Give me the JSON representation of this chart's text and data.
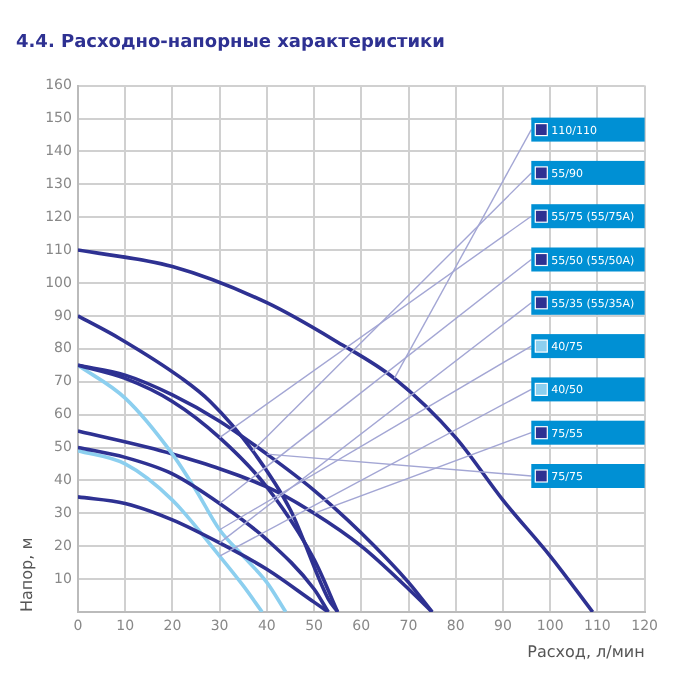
{
  "chart_data": {
    "type": "line",
    "title": "4.4. Расходно-напорные характеристики",
    "xlabel": "Расход, л/мин",
    "ylabel": "Напор, м",
    "xlim": [
      0,
      120
    ],
    "xticks": [
      0,
      10,
      20,
      30,
      40,
      50,
      60,
      70,
      80,
      90,
      100,
      110,
      120
    ],
    "ylim": [
      0,
      160
    ],
    "yticks": [
      {
        "value": 0,
        "label": null
      },
      10,
      20,
      30,
      40,
      50,
      60,
      70,
      80,
      90,
      100,
      110,
      120,
      130,
      140,
      150,
      160
    ],
    "grid": true,
    "legend": "right",
    "marker": "none",
    "line_style": "solid",
    "series": [
      {
        "name": "110/110",
        "color": "#2e3192",
        "x": [
          0,
          20,
          40,
          55,
          67,
          80,
          90,
          100,
          109
        ],
        "values": [
          110,
          105,
          94,
          82,
          71,
          53,
          34,
          17,
          0
        ]
      },
      {
        "name": "55/90",
        "color": "#2e3192",
        "x": [
          0,
          9,
          22,
          28,
          37,
          45,
          53,
          55
        ],
        "values": [
          90,
          83,
          71,
          64,
          49,
          31,
          4,
          0
        ]
      },
      {
        "name": "55/75 (55/75А)",
        "color": "#2e3192",
        "x": [
          0,
          10,
          20,
          30,
          40,
          50,
          55
        ],
        "values": [
          75,
          71,
          64,
          53,
          38,
          16,
          0
        ]
      },
      {
        "name": "55/50 (55/50А)",
        "color": "#2e3192",
        "x": [
          0,
          10,
          20,
          30,
          40,
          50,
          53
        ],
        "values": [
          50,
          47,
          42,
          33,
          22,
          7,
          0
        ]
      },
      {
        "name": "55/35 (55/35А)",
        "color": "#2e3192",
        "x": [
          0,
          10,
          20,
          30,
          40,
          50,
          53
        ],
        "values": [
          35,
          33,
          28,
          21,
          13,
          3,
          0
        ]
      },
      {
        "name": "40/75",
        "color": "#8ccfef",
        "x": [
          0,
          10,
          20,
          25,
          30,
          35,
          40,
          44
        ],
        "values": [
          75,
          65,
          48,
          37,
          25,
          17,
          9,
          0
        ]
      },
      {
        "name": "40/50",
        "color": "#8ccfef",
        "x": [
          0,
          10,
          20,
          30,
          35,
          39
        ],
        "values": [
          49,
          45,
          34,
          17,
          8,
          0
        ]
      },
      {
        "name": "75/55",
        "color": "#2e3192",
        "x": [
          0,
          20,
          40,
          50,
          60,
          70,
          75
        ],
        "values": [
          55,
          48,
          38,
          30,
          20,
          7,
          0
        ]
      },
      {
        "name": "75/75",
        "color": "#2e3192",
        "x": [
          0,
          10,
          20,
          30,
          40,
          50,
          60,
          70,
          75
        ],
        "values": [
          75,
          72,
          66,
          58,
          48,
          37,
          24,
          9,
          0
        ]
      }
    ]
  }
}
